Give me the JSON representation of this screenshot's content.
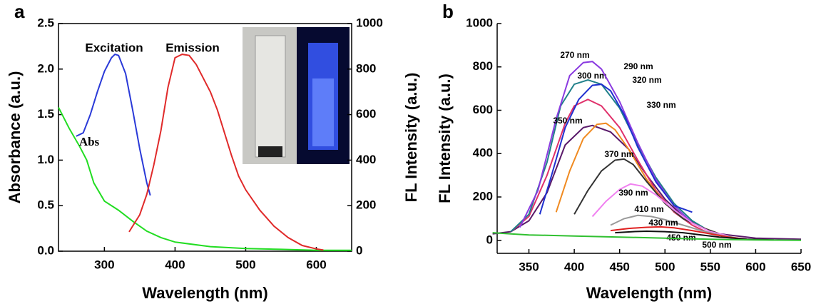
{
  "chart_data": [
    {
      "type": "line",
      "panel_label": "a",
      "xlabel": "Wavelength (nm)",
      "ylabel": "Absorbance (a.u.)",
      "y2label": "FL Intensity (a.u.)",
      "xlim": [
        235,
        650
      ],
      "xticks": [
        300,
        400,
        500,
        600
      ],
      "ylim": [
        0,
        2.5
      ],
      "yticks": [
        {
          "value": 0,
          "label": "0.0"
        },
        0.5,
        {
          "value": 1,
          "label": "1.0"
        },
        1.5,
        {
          "value": 2,
          "label": "2.0"
        },
        2.5
      ],
      "y2lim": [
        0,
        1000
      ],
      "y2ticks": [
        0,
        200,
        400,
        600,
        800,
        1000
      ],
      "series": [
        {
          "name": "Abs",
          "color": "#22dd22",
          "x": [
            235,
            250,
            265,
            275,
            285,
            300,
            320,
            340,
            360,
            380,
            400,
            450,
            500,
            550,
            600,
            650
          ],
          "values": [
            1.58,
            1.35,
            1.15,
            1.0,
            0.75,
            0.55,
            0.45,
            0.33,
            0.22,
            0.15,
            0.1,
            0.05,
            0.03,
            0.02,
            0.01,
            0.01
          ]
        },
        {
          "name": "Excitation",
          "color": "#2a3ad8",
          "axis": "y2",
          "x": [
            260,
            270,
            280,
            290,
            300,
            310,
            315,
            320,
            330,
            340,
            350,
            360,
            365
          ],
          "values": [
            505,
            520,
            600,
            700,
            790,
            850,
            865,
            860,
            780,
            620,
            450,
            300,
            245
          ]
        },
        {
          "name": "Emission",
          "color": "#e02a2a",
          "axis": "y2",
          "x": [
            335,
            350,
            360,
            370,
            380,
            390,
            400,
            410,
            420,
            430,
            440,
            450,
            460,
            470,
            480,
            490,
            500,
            520,
            540,
            560,
            580,
            600,
            610
          ],
          "values": [
            85,
            160,
            250,
            380,
            530,
            720,
            850,
            865,
            860,
            820,
            760,
            700,
            620,
            520,
            420,
            330,
            270,
            180,
            110,
            60,
            25,
            10,
            5
          ]
        }
      ]
    },
    {
      "type": "line",
      "panel_label": "b",
      "xlabel": "Wavelength (nm)",
      "ylabel": "FL Intensity (a.u.)",
      "xlim": [
        315,
        650
      ],
      "xticks": [
        350,
        400,
        450,
        500,
        550,
        600,
        650
      ],
      "ylim": [
        -60,
        1000
      ],
      "yticks": [
        0,
        200,
        400,
        600,
        800,
        1000
      ],
      "series": [
        {
          "name": "270 nm",
          "color": "#5a1a6a",
          "x": [
            310,
            330,
            350,
            370,
            390,
            410,
            420,
            440,
            460,
            480,
            500,
            520,
            540,
            560,
            600,
            650
          ],
          "values": [
            30,
            40,
            90,
            220,
            440,
            520,
            530,
            500,
            420,
            300,
            190,
            110,
            60,
            30,
            10,
            5
          ]
        },
        {
          "name": "290 nm",
          "color": "#e0306a",
          "x": [
            330,
            350,
            370,
            390,
            400,
            415,
            430,
            450,
            470,
            490,
            510,
            530,
            550
          ],
          "values": [
            40,
            110,
            300,
            540,
            620,
            650,
            620,
            520,
            370,
            230,
            130,
            70,
            30
          ]
        },
        {
          "name": "300 nm",
          "color": "#20808a",
          "x": [
            330,
            350,
            370,
            385,
            400,
            415,
            430,
            450,
            470,
            490,
            510,
            530,
            550,
            560
          ],
          "values": [
            40,
            120,
            360,
            620,
            720,
            740,
            720,
            610,
            440,
            290,
            170,
            90,
            40,
            30
          ]
        },
        {
          "name": "320 nm",
          "color": "#8a3ae0",
          "x": [
            340,
            360,
            380,
            395,
            410,
            420,
            430,
            450,
            470,
            490,
            510,
            530
          ],
          "values": [
            60,
            230,
            560,
            760,
            820,
            825,
            790,
            640,
            450,
            280,
            160,
            80
          ]
        },
        {
          "name": "330 nm",
          "color": "#2030d0",
          "x": [
            362,
            375,
            390,
            405,
            420,
            430,
            440,
            455,
            470,
            490,
            510,
            530
          ],
          "values": [
            120,
            300,
            520,
            650,
            715,
            720,
            690,
            580,
            430,
            270,
            160,
            130
          ]
        },
        {
          "name": "350 nm",
          "color": "#f08a20",
          "x": [
            380,
            395,
            410,
            425,
            435,
            445,
            460,
            480,
            500,
            520,
            540,
            560
          ],
          "values": [
            130,
            320,
            470,
            535,
            540,
            510,
            420,
            280,
            170,
            100,
            60,
            30
          ]
        },
        {
          "name": "370 nm",
          "color": "#333333",
          "x": [
            400,
            415,
            430,
            445,
            455,
            465,
            480,
            500,
            520,
            540,
            560
          ],
          "values": [
            120,
            230,
            320,
            370,
            375,
            350,
            270,
            170,
            100,
            60,
            30
          ]
        },
        {
          "name": "390 nm",
          "color": "#f080f0",
          "x": [
            420,
            435,
            450,
            462,
            475,
            490,
            510,
            530,
            550,
            570
          ],
          "values": [
            110,
            180,
            235,
            260,
            250,
            210,
            140,
            80,
            40,
            20
          ]
        },
        {
          "name": "410 nm",
          "color": "#999999",
          "x": [
            440,
            455,
            470,
            485,
            500,
            520,
            540,
            560,
            580
          ],
          "values": [
            70,
            100,
            115,
            110,
            95,
            70,
            45,
            25,
            10
          ]
        },
        {
          "name": "430 nm",
          "color": "#e02020",
          "x": [
            440,
            460,
            480,
            495,
            510,
            530,
            550,
            570,
            590
          ],
          "values": [
            45,
            55,
            60,
            62,
            58,
            45,
            30,
            15,
            5
          ]
        },
        {
          "name": "450 nm",
          "color": "#111111",
          "x": [
            445,
            465,
            480,
            500,
            520,
            540,
            560,
            590,
            620
          ],
          "values": [
            35,
            40,
            42,
            40,
            35,
            25,
            15,
            5,
            2
          ]
        },
        {
          "name": "500 nm",
          "color": "#30c030",
          "x": [
            310,
            330,
            350,
            400,
            450,
            500,
            550,
            600,
            650
          ],
          "values": [
            35,
            30,
            25,
            20,
            15,
            10,
            5,
            2,
            0
          ]
        }
      ]
    }
  ]
}
